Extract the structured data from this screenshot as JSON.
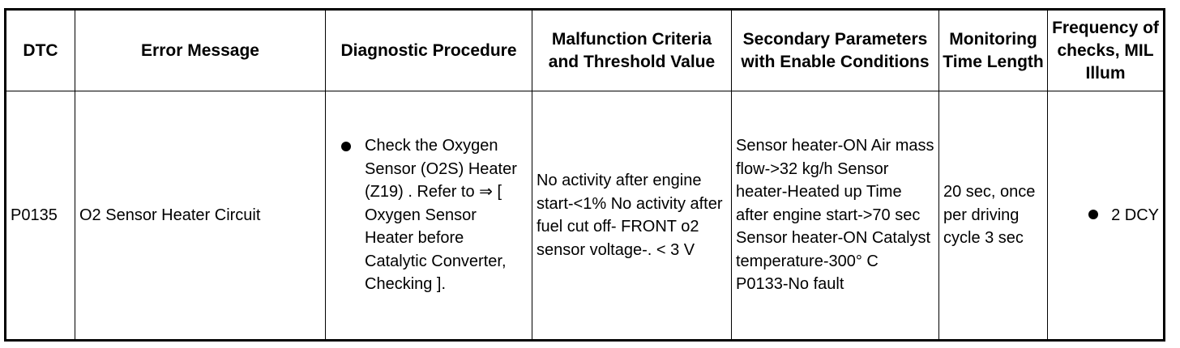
{
  "table": {
    "headers": [
      "DTC",
      "Error Message",
      "Diagnostic Procedure",
      "Malfunction Criteria and Threshold Value",
      "Secondary Parameters with Enable Conditions",
      "Monitoring Time Length",
      "Frequency of checks, MIL Illum"
    ],
    "row": {
      "dtc": "P0135",
      "error_message": "O2 Sensor Heater Circuit",
      "diagnostic_procedure": "Check the Oxygen Sensor (O2S) Heater (Z19) . Refer to ⇒ [ Oxygen Sensor Heater before Catalytic Converter, Checking ].",
      "malfunction_criteria": "No activity after engine start-<1% No activity after fuel cut off- FRONT o2 sensor voltage-. < 3 V",
      "secondary_parameters": "Sensor heater-ON Air mass flow->32 kg/h Sensor heater-Heated up Time after engine start->70 sec Sensor heater-ON Catalyst temperature-300° C P0133-No fault",
      "monitoring_time": "20 sec, once per driving cycle 3 sec",
      "frequency": "2 DCY"
    }
  }
}
